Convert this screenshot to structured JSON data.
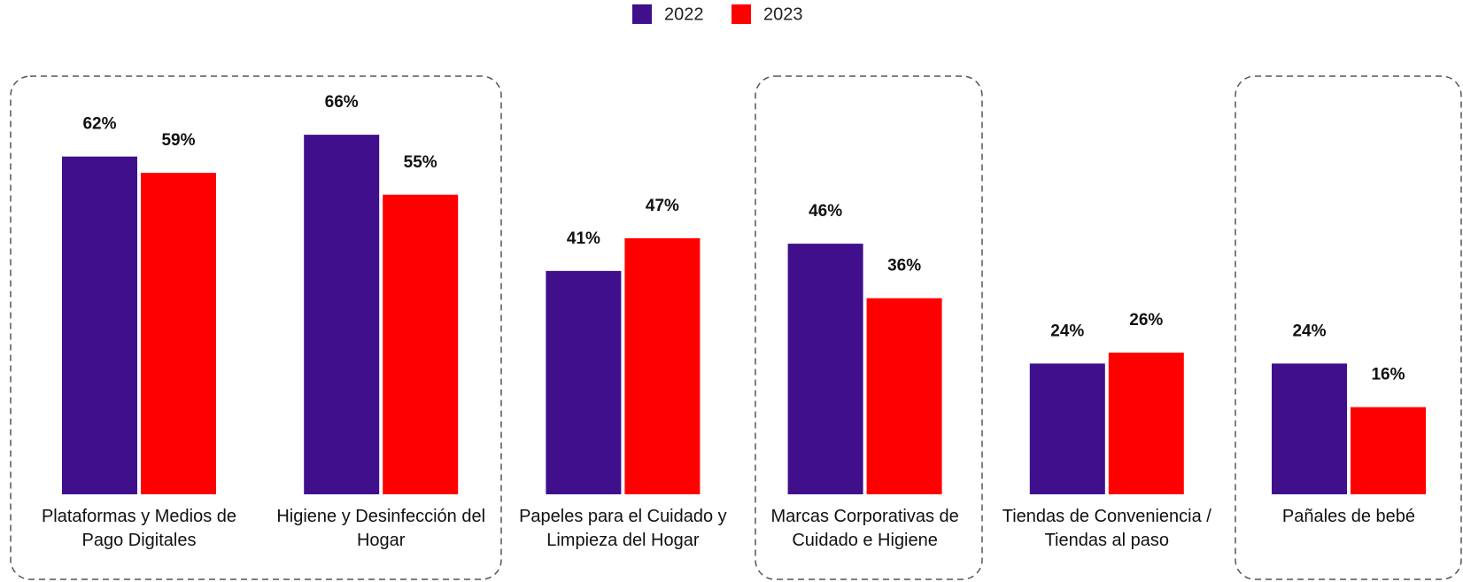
{
  "chart_data": {
    "type": "bar",
    "categories": [
      "Plataformas y Medios de Pago Digitales",
      "Higiene y Desinfección del Hogar",
      "Papeles para el Cuidado y Limpieza del Hogar",
      "Marcas Corporativas de Cuidado e Higiene",
      "Tiendas de Conveniencia / Tiendas al paso",
      "Pañales de bebé"
    ],
    "series": [
      {
        "name": "2022",
        "color": "#3f0f8c",
        "values": [
          62,
          66,
          41,
          46,
          24,
          24
        ],
        "value_labels": [
          "62%",
          "66%",
          "41%",
          "46%",
          "24%",
          "24%"
        ]
      },
      {
        "name": "2023",
        "color": "#ff0000",
        "values": [
          59,
          55,
          47,
          36,
          26,
          16
        ],
        "value_labels": [
          "59%",
          "55%",
          "47%",
          "36%",
          "26%",
          "16%"
        ]
      }
    ]
  }
}
